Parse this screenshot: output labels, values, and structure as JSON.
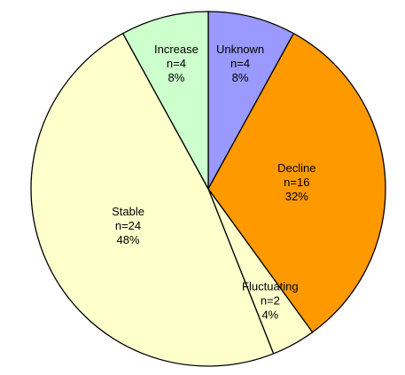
{
  "chart_data": {
    "type": "pie",
    "categories": [
      "Unknown",
      "Decline",
      "Fluctuating",
      "Stable",
      "Increase"
    ],
    "values": [
      8,
      32,
      4,
      48,
      8
    ],
    "value_labels": [
      "8%",
      "32%",
      "4%",
      "48%",
      "8%"
    ],
    "count_labels": [
      "n=4",
      "n=16",
      "n=2",
      "n=24",
      "n=4"
    ],
    "colors": [
      "#9999ff",
      "#ff9900",
      "#ffffcc",
      "#ffffcc",
      "#ccffcc"
    ]
  }
}
